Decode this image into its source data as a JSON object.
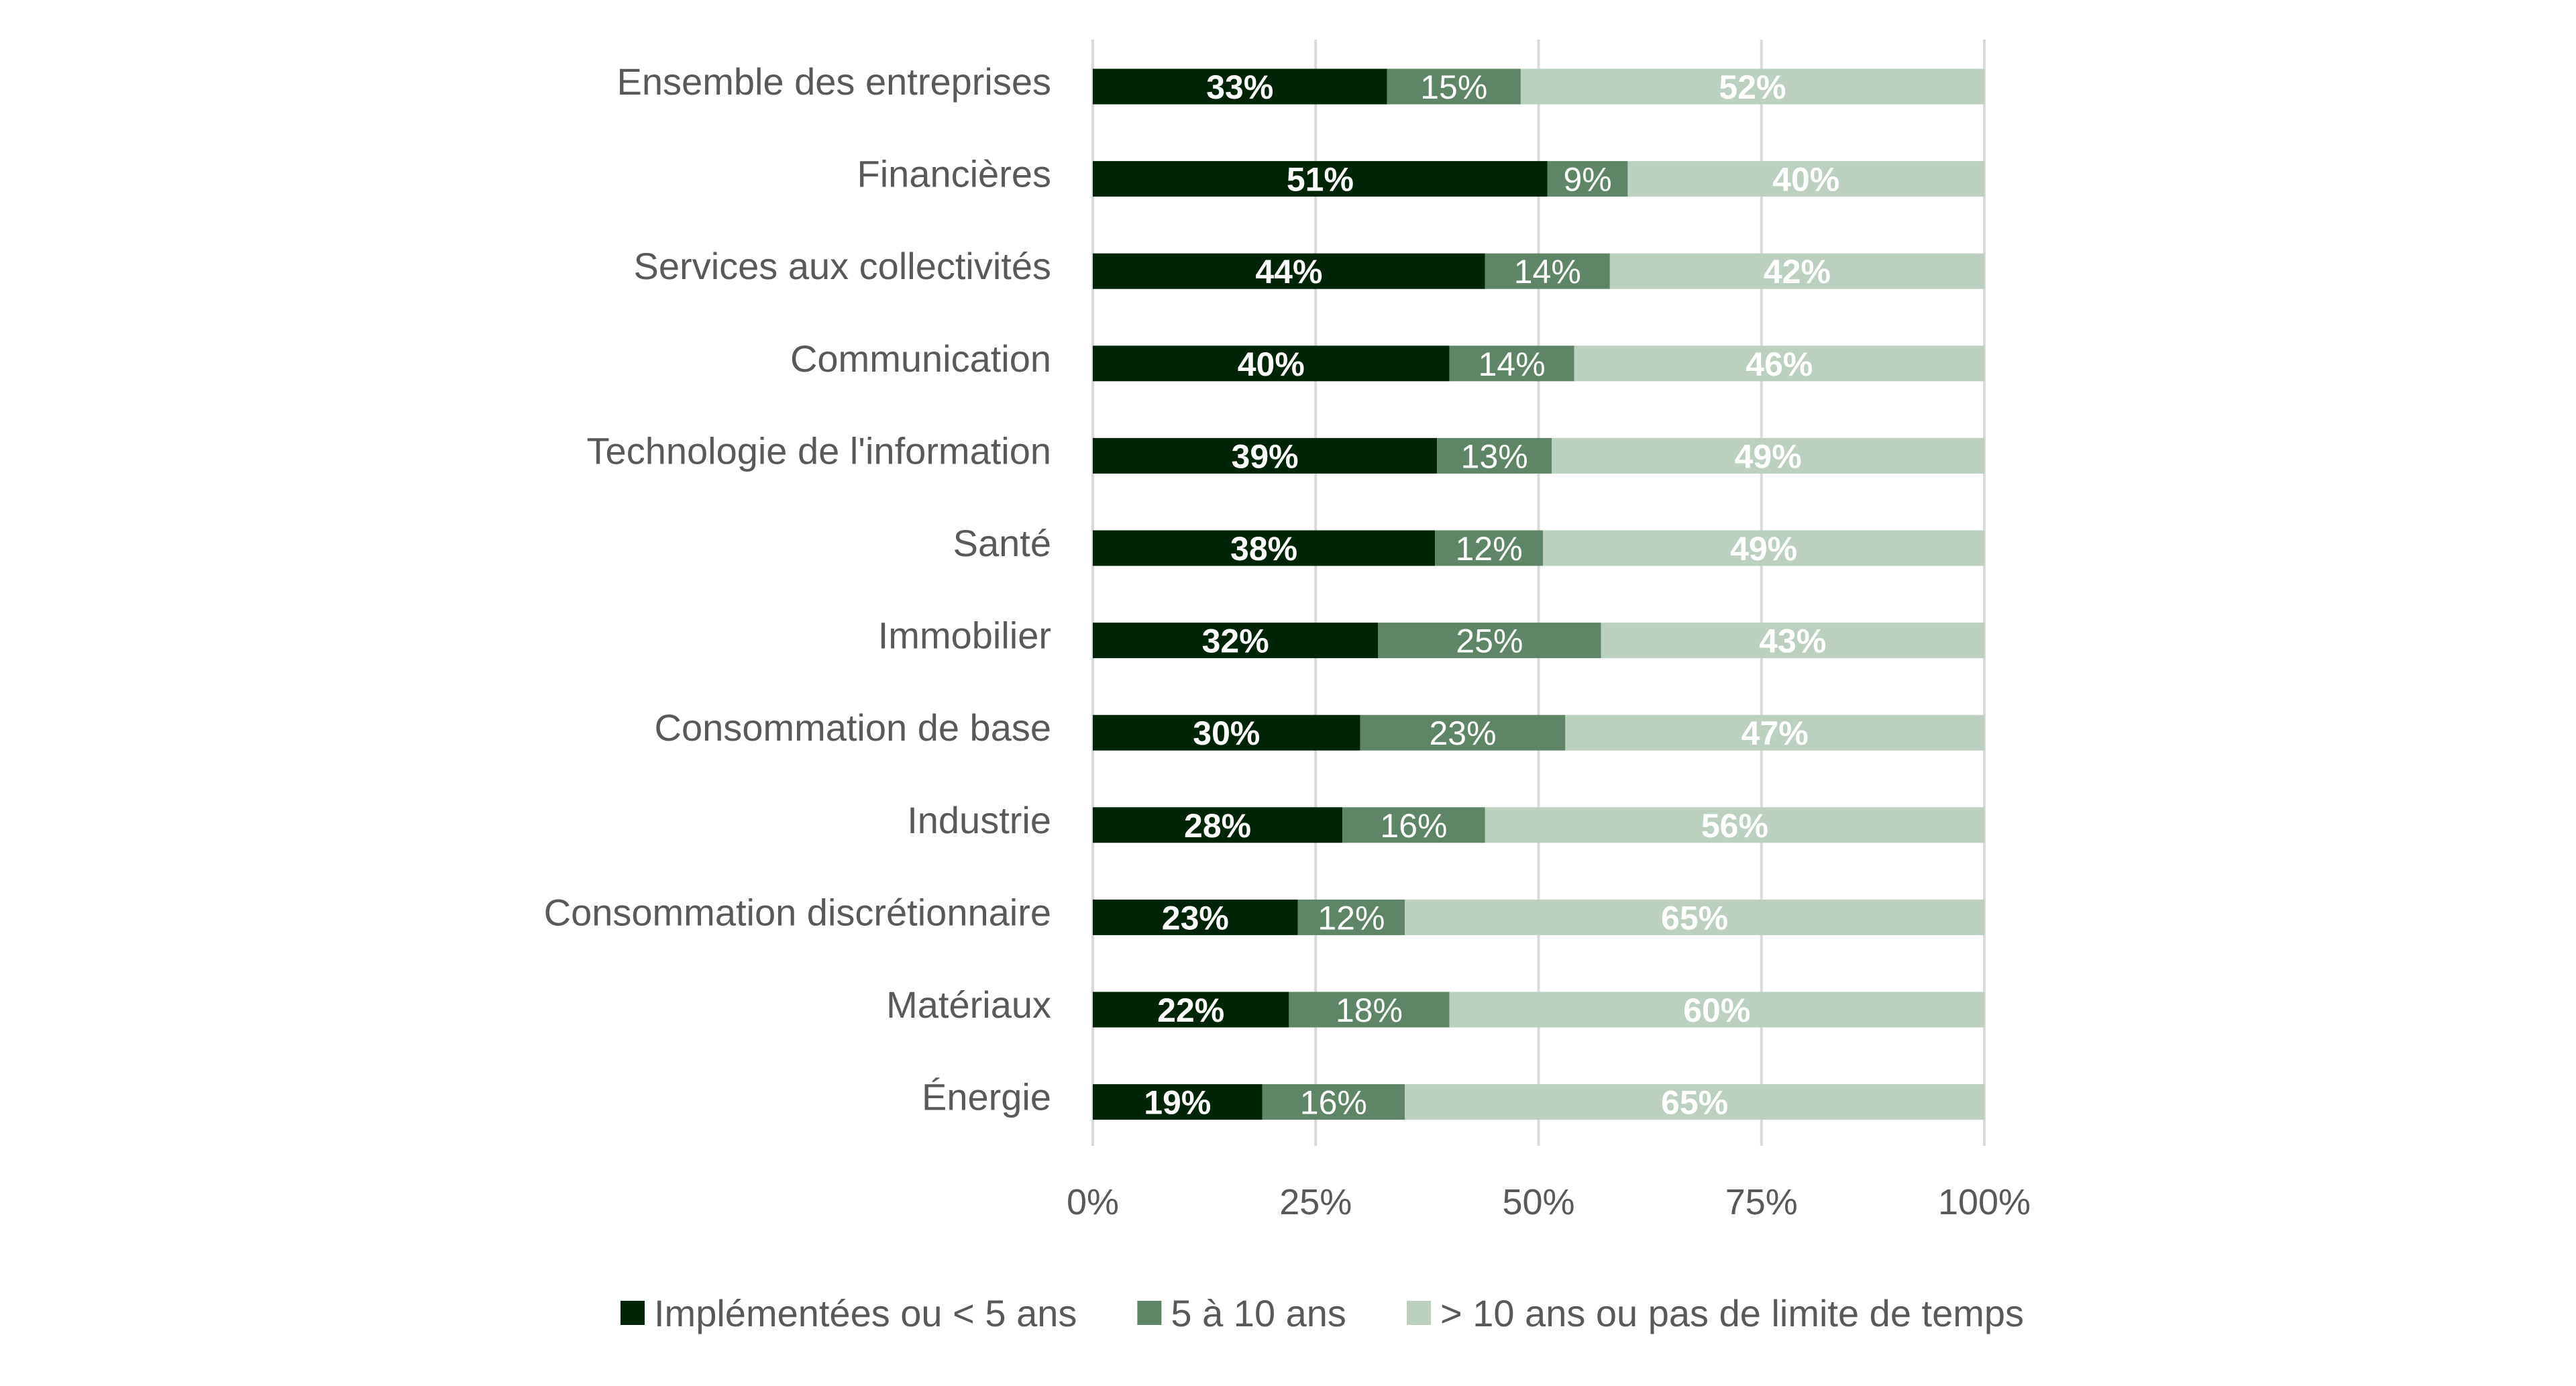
{
  "chart_data": {
    "type": "bar",
    "orientation": "horizontal",
    "stacked": true,
    "title": "",
    "xlabel": "",
    "ylabel": "",
    "xlim": [
      0,
      100
    ],
    "x_ticks": [
      "0%",
      "25%",
      "50%",
      "75%",
      "100%"
    ],
    "grid": true,
    "legend_position": "bottom",
    "categories": [
      "Ensemble des entreprises",
      "Financières",
      "Services aux collectivités",
      "Communication",
      "Technologie de l'information",
      "Santé",
      "Immobilier",
      "Consommation de base",
      "Industrie",
      "Consommation discrétionnaire",
      "Matériaux",
      "Énergie"
    ],
    "series": [
      {
        "name": "Implémentées ou < 5 ans",
        "color": "#002406",
        "label_bold": true,
        "values": [
          33,
          51,
          44,
          40,
          39,
          38,
          32,
          30,
          28,
          23,
          22,
          19
        ]
      },
      {
        "name": "5 à 10 ans",
        "color": "#5e8565",
        "label_bold": false,
        "values": [
          15,
          9,
          14,
          14,
          13,
          12,
          25,
          23,
          16,
          12,
          18,
          16
        ]
      },
      {
        "name": "> 10 ans ou pas de limite de temps",
        "color": "#bbd0bf",
        "label_bold": true,
        "values": [
          52,
          40,
          42,
          46,
          49,
          49,
          43,
          47,
          56,
          65,
          60,
          65
        ]
      }
    ],
    "value_suffix": "%"
  }
}
